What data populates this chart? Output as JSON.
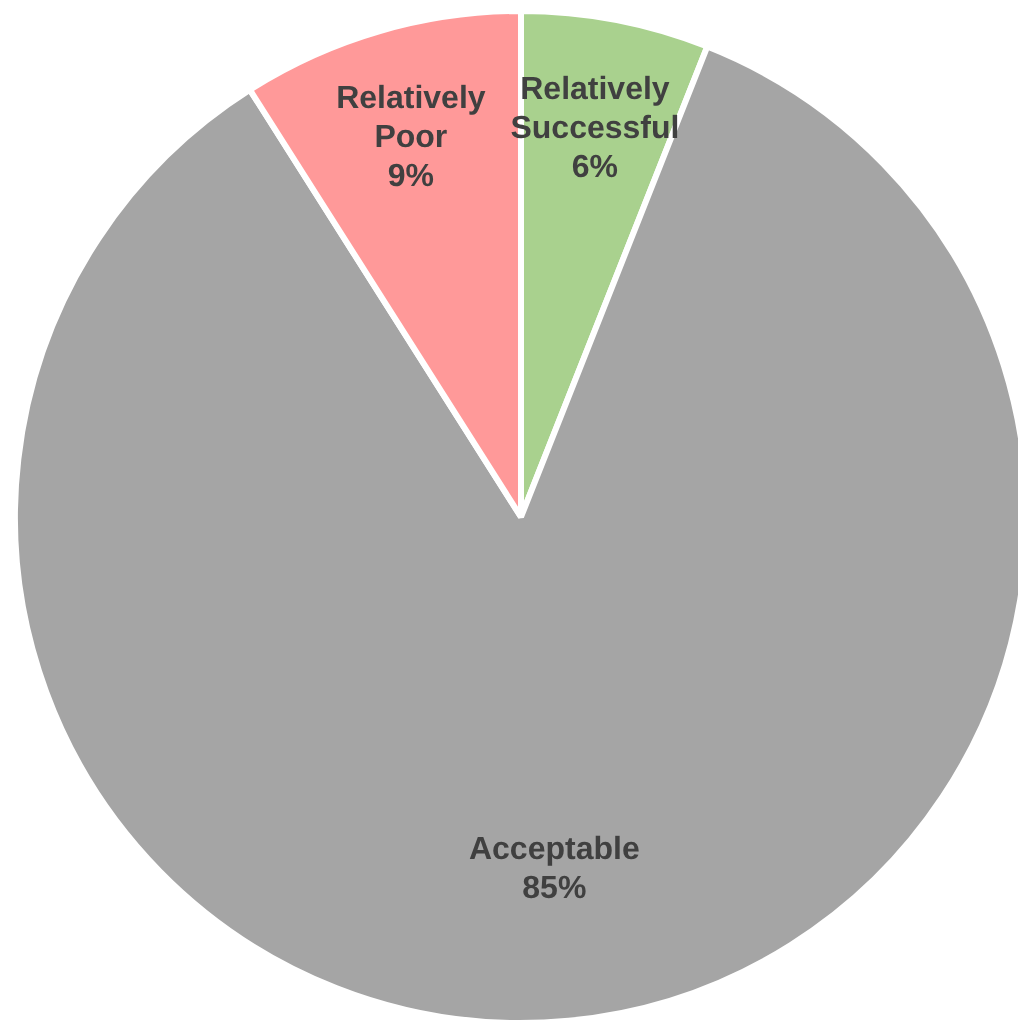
{
  "chart_data": {
    "type": "pie",
    "categories": [
      "Relatively Successful",
      "Acceptable",
      "Relatively Poor"
    ],
    "values": [
      6,
      85,
      9
    ],
    "colors": [
      "#a9d18e",
      "#a5a5a5",
      "#ff9999"
    ],
    "value_labels": [
      "6%",
      "85%",
      "9%"
    ]
  }
}
